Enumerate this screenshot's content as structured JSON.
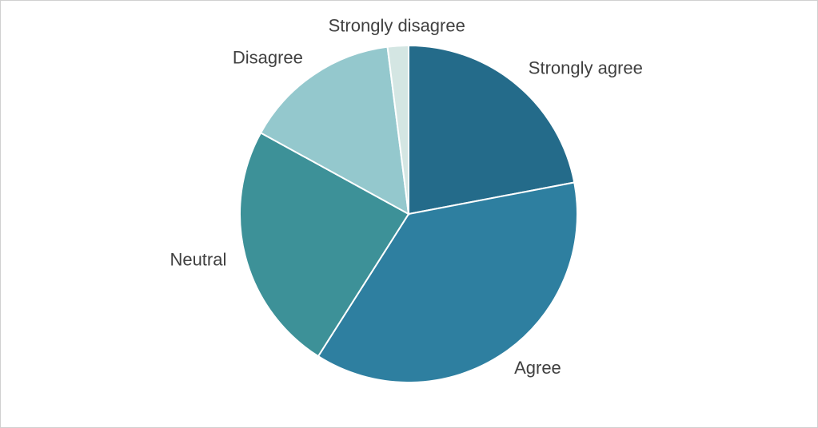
{
  "chart_data": {
    "type": "pie",
    "categories": [
      "Strongly agree",
      "Agree",
      "Neutral",
      "Disagree",
      "Strongly disagree"
    ],
    "values": [
      22,
      37,
      24,
      15,
      2
    ],
    "colors": [
      "#246b8a",
      "#2e7fa0",
      "#3d9198",
      "#94c8cd",
      "#d4e6e3"
    ]
  }
}
